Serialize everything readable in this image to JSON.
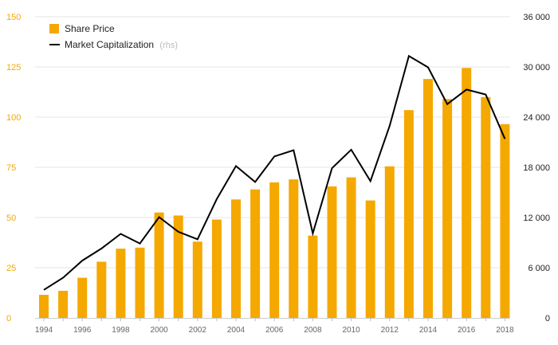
{
  "chart_data": {
    "type": "bar",
    "title": "",
    "xlabel": "",
    "ylabel": "",
    "years": [
      1994,
      1995,
      1996,
      1997,
      1998,
      1999,
      2000,
      2001,
      2002,
      2003,
      2004,
      2005,
      2006,
      2007,
      2008,
      2009,
      2010,
      2011,
      2012,
      2013,
      2014,
      2015,
      2016,
      2017,
      2018
    ],
    "x_tick_labels": [
      "1994",
      "1996",
      "1998",
      "2000",
      "2002",
      "2004",
      "2006",
      "2008",
      "2010",
      "2012",
      "2014",
      "2016",
      "2018"
    ],
    "y_left_ticks": [
      "0",
      "25",
      "50",
      "75",
      "100",
      "125",
      "150"
    ],
    "y_right_ticks": [
      "0",
      "6 000",
      "12 000",
      "18 000",
      "24 000",
      "30 000",
      "36 000"
    ],
    "ylim_left": [
      0,
      150
    ],
    "ylim_right": [
      0,
      36000
    ],
    "grid": "horizontal",
    "legend_position": "top-left",
    "series": [
      {
        "name": "Share Price",
        "kind": "bar",
        "axis": "left",
        "color": "#f5a800",
        "values": [
          11.5,
          13.5,
          20,
          28,
          34.5,
          35,
          52.5,
          51,
          38,
          49,
          59,
          64,
          67.5,
          69,
          41,
          65.5,
          70,
          58.5,
          75.5,
          103.5,
          119,
          109,
          124.5,
          110,
          96.5
        ]
      },
      {
        "name": "Market Capitalization",
        "name_suffix": "(rhs)",
        "kind": "line",
        "axis": "right",
        "color": "#000000",
        "values": [
          3350,
          4800,
          6850,
          8300,
          10050,
          8900,
          12050,
          10300,
          9400,
          14200,
          18150,
          16250,
          19300,
          20050,
          10100,
          17900,
          20100,
          16350,
          22950,
          31300,
          29950,
          25550,
          27300,
          26700,
          21400
        ]
      }
    ]
  }
}
